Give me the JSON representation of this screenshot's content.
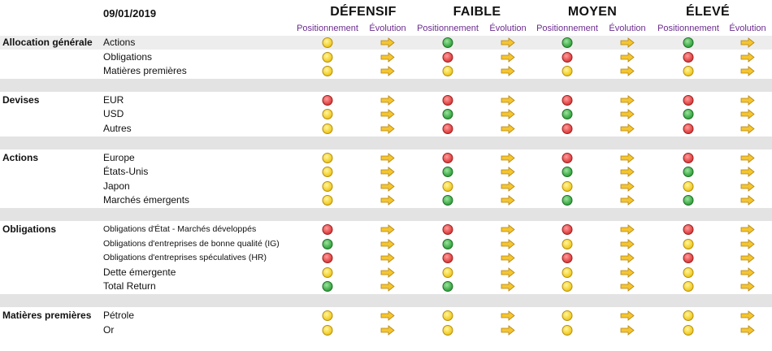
{
  "date": "09/01/2019",
  "profiles": [
    "DÉFENSIF",
    "FAIBLE",
    "MOYEN",
    "ÉLEVÉ"
  ],
  "subheaders": {
    "positioning": "Positionnement",
    "evolution": "Évolution"
  },
  "colors": {
    "yellow": "#f4cf2c",
    "red": "#e44848",
    "green": "#3fae4a",
    "arrow": "#f4c52f",
    "band": "#e3e3e3",
    "subheader": "#6b2b8f"
  },
  "sections": [
    {
      "name": "Allocation générale",
      "rows": [
        {
          "label": "Actions",
          "positions": [
            "yellow",
            "green",
            "green",
            "green"
          ],
          "evolution": [
            "right",
            "right",
            "right",
            "right"
          ]
        },
        {
          "label": "Obligations",
          "positions": [
            "yellow",
            "red",
            "red",
            "red"
          ],
          "evolution": [
            "right",
            "right",
            "right",
            "right"
          ]
        },
        {
          "label": "Matières premières",
          "positions": [
            "yellow",
            "yellow",
            "yellow",
            "yellow"
          ],
          "evolution": [
            "right",
            "right",
            "right",
            "right"
          ]
        }
      ]
    },
    {
      "name": "Devises",
      "rows": [
        {
          "label": "EUR",
          "positions": [
            "red",
            "red",
            "red",
            "red"
          ],
          "evolution": [
            "right",
            "right",
            "right",
            "right"
          ]
        },
        {
          "label": "USD",
          "positions": [
            "yellow",
            "green",
            "green",
            "green"
          ],
          "evolution": [
            "right",
            "right",
            "right",
            "right"
          ]
        },
        {
          "label": "Autres",
          "positions": [
            "yellow",
            "red",
            "red",
            "red"
          ],
          "evolution": [
            "right",
            "right",
            "right",
            "right"
          ]
        }
      ]
    },
    {
      "name": "Actions",
      "rows": [
        {
          "label": "Europe",
          "positions": [
            "yellow",
            "red",
            "red",
            "red"
          ],
          "evolution": [
            "right",
            "right",
            "right",
            "right"
          ]
        },
        {
          "label": "États-Unis",
          "positions": [
            "yellow",
            "green",
            "green",
            "green"
          ],
          "evolution": [
            "right",
            "right",
            "right",
            "right"
          ]
        },
        {
          "label": "Japon",
          "positions": [
            "yellow",
            "yellow",
            "yellow",
            "yellow"
          ],
          "evolution": [
            "right",
            "right",
            "right",
            "right"
          ]
        },
        {
          "label": "Marchés émergents",
          "positions": [
            "yellow",
            "green",
            "green",
            "green"
          ],
          "evolution": [
            "right",
            "right",
            "right",
            "right"
          ]
        }
      ]
    },
    {
      "name": "Obligations",
      "rows": [
        {
          "label": "Obligations d'État - Marchés développés",
          "positions": [
            "red",
            "red",
            "red",
            "red"
          ],
          "evolution": [
            "right",
            "right",
            "right",
            "right"
          ]
        },
        {
          "label": "Obligations d'entreprises de bonne qualité (IG)",
          "positions": [
            "green",
            "green",
            "yellow",
            "yellow"
          ],
          "evolution": [
            "right",
            "right",
            "right",
            "right"
          ]
        },
        {
          "label": "Obligations d'entreprises spéculatives (HR)",
          "positions": [
            "red",
            "red",
            "red",
            "red"
          ],
          "evolution": [
            "right",
            "right",
            "right",
            "right"
          ]
        },
        {
          "label": "Dette émergente",
          "positions": [
            "yellow",
            "yellow",
            "yellow",
            "yellow"
          ],
          "evolution": [
            "right",
            "right",
            "right",
            "right"
          ]
        },
        {
          "label": "Total Return",
          "positions": [
            "green",
            "green",
            "yellow",
            "yellow"
          ],
          "evolution": [
            "right",
            "right",
            "right",
            "right"
          ]
        }
      ]
    },
    {
      "name": "Matières premières",
      "rows": [
        {
          "label": "Pétrole",
          "positions": [
            "yellow",
            "yellow",
            "yellow",
            "yellow"
          ],
          "evolution": [
            "right",
            "right",
            "right",
            "right"
          ]
        },
        {
          "label": "Or",
          "positions": [
            "yellow",
            "yellow",
            "yellow",
            "yellow"
          ],
          "evolution": [
            "right",
            "right",
            "right",
            "right"
          ]
        }
      ]
    }
  ]
}
